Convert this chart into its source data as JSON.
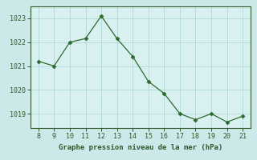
{
  "x": [
    8,
    9,
    10,
    11,
    12,
    13,
    14,
    15,
    16,
    17,
    18,
    19,
    20,
    21
  ],
  "y": [
    1021.2,
    1021.0,
    1022.0,
    1022.15,
    1023.1,
    1022.15,
    1021.4,
    1020.35,
    1019.85,
    1019.0,
    1018.75,
    1019.0,
    1018.65,
    1018.9
  ],
  "line_color": "#2d6a2d",
  "marker": "D",
  "marker_size": 2.5,
  "background_color": "#cce8e8",
  "plot_bg_color": "#d8f0f0",
  "grid_color": "#b0d8d8",
  "xlabel": "Graphe pression niveau de la mer (hPa)",
  "tick_color": "#2d5a2d",
  "spine_color": "#2d5a2d",
  "xlim": [
    7.5,
    21.5
  ],
  "ylim": [
    1018.4,
    1023.5
  ],
  "yticks": [
    1019,
    1020,
    1021,
    1022,
    1023
  ],
  "xticks": [
    8,
    9,
    10,
    11,
    12,
    13,
    14,
    15,
    16,
    17,
    18,
    19,
    20,
    21
  ],
  "tick_fontsize": 6.0,
  "xlabel_fontsize": 6.5
}
